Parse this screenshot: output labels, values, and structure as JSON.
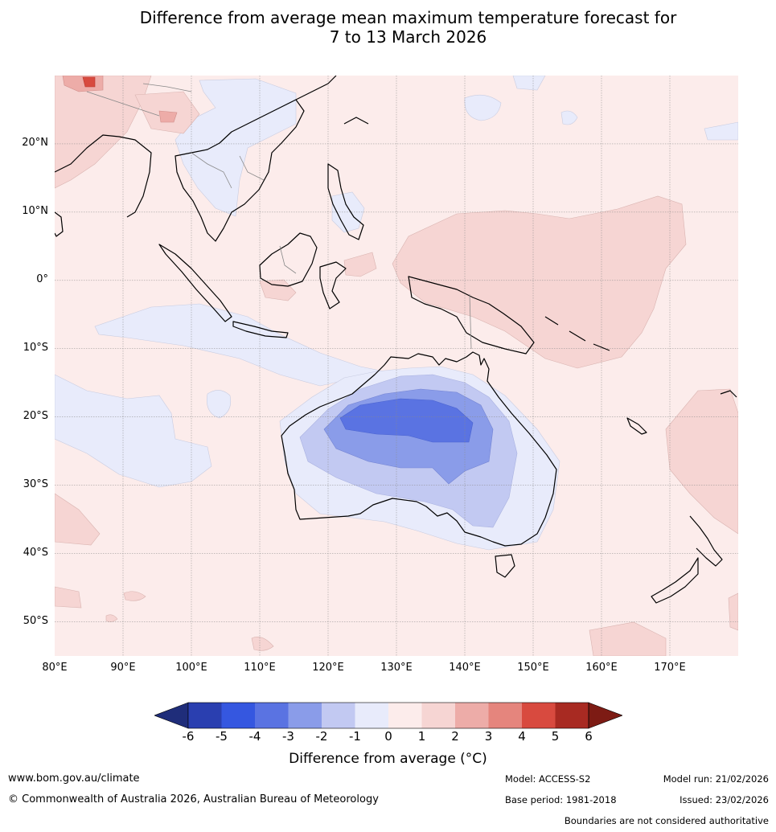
{
  "title": {
    "line1": "Difference from average mean maximum temperature forecast for",
    "line2": "7 to 13 March 2026"
  },
  "map": {
    "lat_labels": [
      "20°N",
      "10°N",
      "0°",
      "10°S",
      "20°S",
      "30°S",
      "40°S",
      "50°S"
    ],
    "lon_labels": [
      "80°E",
      "90°E",
      "100°E",
      "110°E",
      "120°E",
      "130°E",
      "140°E",
      "150°E",
      "160°E",
      "170°E"
    ],
    "extent": {
      "lon_min": 80,
      "lon_max": 180,
      "lat_min": -55,
      "lat_max": 30
    }
  },
  "colorbar": {
    "levels": [
      "-6",
      "-5",
      "-4",
      "-3",
      "-2",
      "-1",
      "0",
      "1",
      "2",
      "3",
      "4",
      "5",
      "6"
    ],
    "colors": {
      "below": "#1f2d7a",
      "bins": [
        "#2a3fb0",
        "#3557e0",
        "#5a73e2",
        "#8a9ce9",
        "#c2c9f2",
        "#e8ebfb",
        "#fceceb",
        "#f6d5d3",
        "#edaca8",
        "#e5857d",
        "#d84a3f",
        "#a82a22"
      ],
      "above": "#7d1b14"
    },
    "label": "Difference from average (°C)"
  },
  "footer": {
    "website": "www.bom.gov.au/climate",
    "copyright": "© Commonwealth of Australia 2026, Australian Bureau of Meteorology",
    "model": "Model: ACCESS-S2",
    "base_period": "Base period: 1981-2018",
    "model_run": "Model run: 21/02/2026",
    "issued": "Issued: 23/02/2026",
    "disclaimer": "Boundaries are not considered authoritative"
  }
}
